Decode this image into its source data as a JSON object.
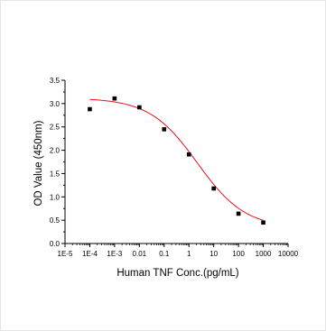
{
  "chart_data": {
    "type": "scatter",
    "title": "",
    "xlabel": "Human TNF Conc.(pg/mL)",
    "ylabel": "OD Value (450nm)",
    "x_scale": "log",
    "xlim": [
      1e-05,
      10000
    ],
    "ylim": [
      0.0,
      3.5
    ],
    "x_tick_labels": [
      "1E-5",
      "1E-4",
      "1E-3",
      "0.01",
      "0.1",
      "1",
      "10",
      "100",
      "1000",
      "10000"
    ],
    "x_tick_values": [
      1e-05,
      0.0001,
      0.001,
      0.01,
      0.1,
      1,
      10,
      100,
      1000,
      10000
    ],
    "y_tick_labels": [
      "0.0",
      "0.5",
      "1.0",
      "1.5",
      "2.0",
      "2.5",
      "3.0",
      "3.5"
    ],
    "y_tick_values": [
      0.0,
      0.5,
      1.0,
      1.5,
      2.0,
      2.5,
      3.0,
      3.5
    ],
    "grid": false,
    "legend": "none",
    "series": [
      {
        "points": [
          {
            "x": 0.0001,
            "y": 2.88
          },
          {
            "x": 0.001,
            "y": 3.11
          },
          {
            "x": 0.01,
            "y": 2.92
          },
          {
            "x": 0.1,
            "y": 2.45
          },
          {
            "x": 1,
            "y": 1.91
          },
          {
            "x": 10,
            "y": 1.18
          },
          {
            "x": 100,
            "y": 0.64
          },
          {
            "x": 1000,
            "y": 0.45
          }
        ],
        "marker_color": "#000000"
      }
    ],
    "fit_curve": {
      "model": "4PL",
      "top": 3.12,
      "bottom": 0.33,
      "ec50": 2.2,
      "hill": 0.45,
      "color": "#e8141c"
    }
  }
}
